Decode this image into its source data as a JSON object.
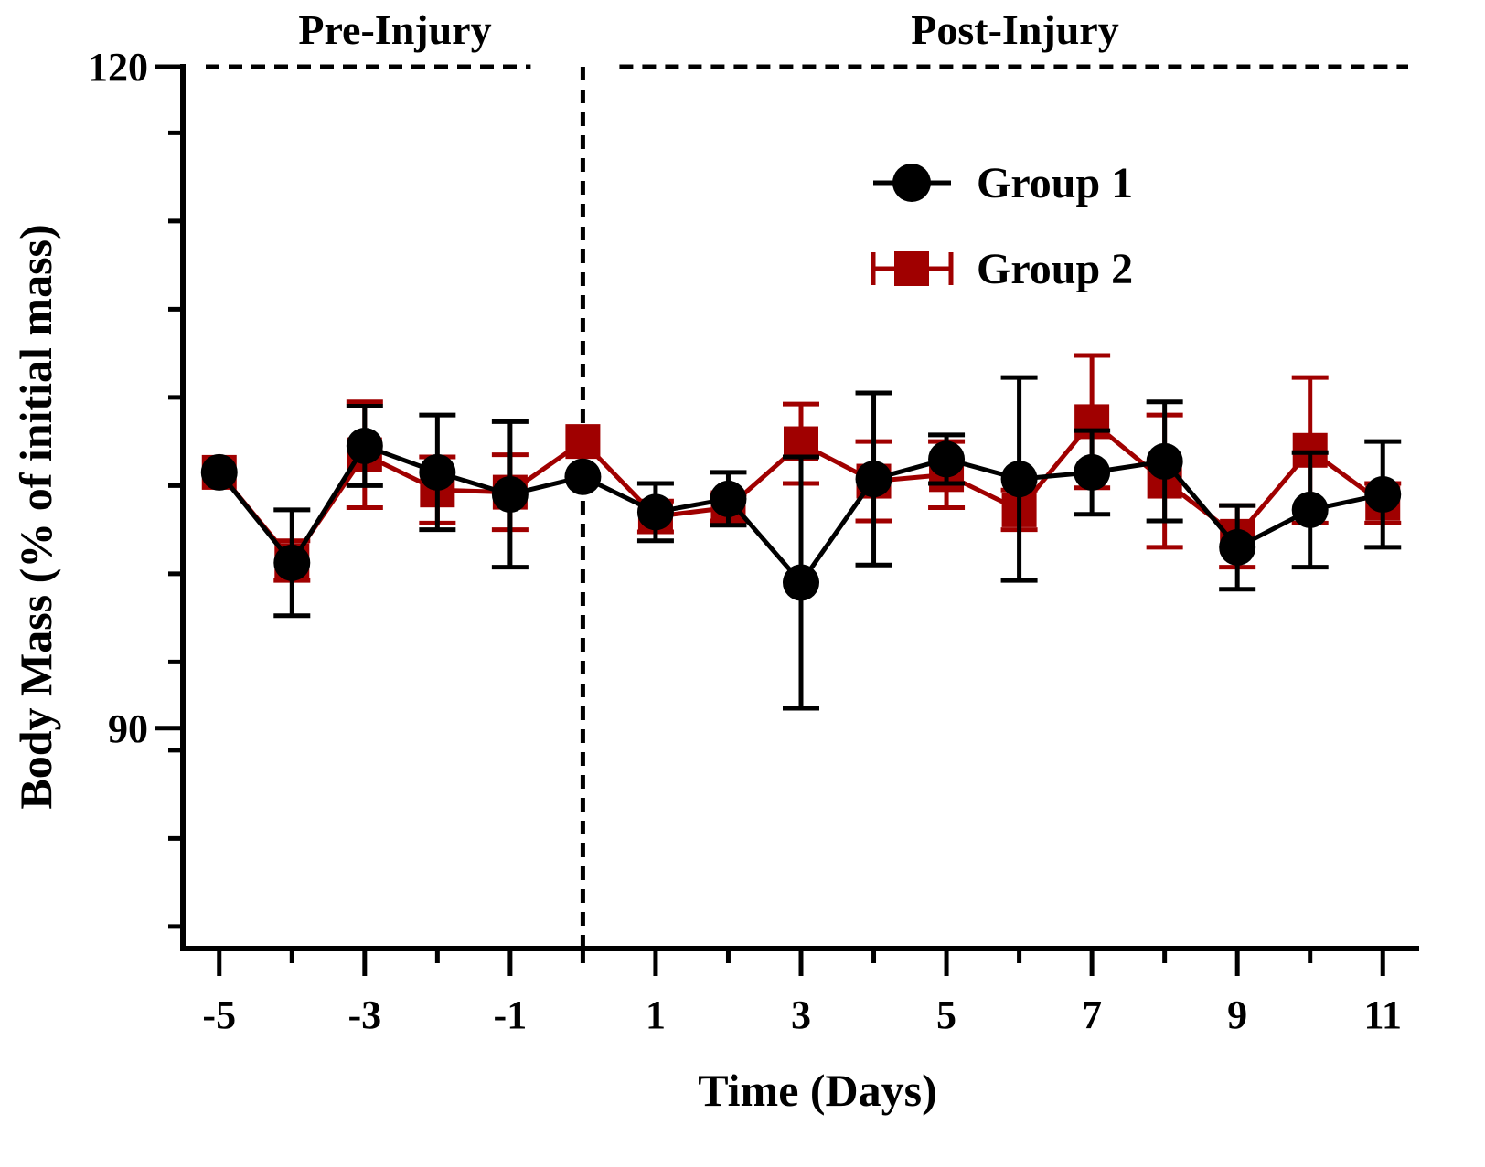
{
  "chart_data": {
    "type": "line",
    "title": "",
    "xlabel": "Time (Days)",
    "ylabel": "Body Mass (% of initial mass)",
    "xlim": [
      -5.5,
      11.5
    ],
    "ylim": [
      80,
      120
    ],
    "x_ticks": [
      -5,
      -4,
      -3,
      -2,
      -1,
      0,
      1,
      2,
      3,
      4,
      5,
      6,
      7,
      8,
      9,
      10,
      11
    ],
    "x_tick_labels": [
      "-5",
      "-3",
      "-1",
      "1",
      "3",
      "5",
      "7",
      "9",
      "11"
    ],
    "x_tick_label_values": [
      -5,
      -3,
      -1,
      1,
      3,
      5,
      7,
      9,
      11
    ],
    "y_ticks": [
      81,
      85,
      89,
      93,
      97,
      101,
      105,
      109,
      113,
      117
    ],
    "y_tick_labels": [
      "120",
      "90"
    ],
    "y_tick_label_values": [
      120,
      90
    ],
    "regions": [
      {
        "label": "Pre-Injury",
        "x_start": -5.5,
        "x_end": 0
      },
      {
        "label": "Post-Injury",
        "x_start": 0,
        "x_end": 11.5
      }
    ],
    "reference_lines": [
      {
        "orientation": "vertical",
        "x": 0,
        "style": "dashed"
      },
      {
        "orientation": "horizontal",
        "y": 120,
        "style": "dashed"
      }
    ],
    "grid": false,
    "legend_position": "top-right",
    "series": [
      {
        "name": "Group 1",
        "color": "#000000",
        "marker": "circle",
        "x": [
          -5,
          -4,
          -3,
          -2,
          -1,
          0,
          1,
          2,
          3,
          4,
          5,
          6,
          7,
          8,
          9,
          10,
          11
        ],
        "y": [
          101.6,
          97.5,
          102.8,
          101.6,
          100.6,
          101.4,
          99.8,
          100.4,
          96.6,
          101.3,
          102.2,
          101.3,
          101.6,
          102.1,
          98.2,
          99.9,
          100.6
        ],
        "err": [
          0.0,
          2.4,
          1.8,
          2.6,
          3.3,
          0.0,
          1.3,
          1.2,
          5.7,
          3.9,
          1.1,
          4.6,
          1.9,
          2.7,
          1.9,
          2.6,
          2.4
        ]
      },
      {
        "name": "Group 2",
        "color": "#a00000",
        "marker": "square",
        "x": [
          -5,
          -4,
          -3,
          -2,
          -1,
          0,
          1,
          2,
          3,
          4,
          5,
          6,
          7,
          8,
          9,
          10,
          11
        ],
        "y": [
          101.6,
          97.6,
          102.4,
          100.8,
          100.7,
          103.0,
          99.6,
          100.0,
          102.9,
          101.2,
          101.5,
          99.9,
          103.9,
          101.2,
          98.7,
          102.6,
          100.2
        ],
        "err": [
          0.0,
          0.9,
          2.4,
          1.5,
          1.7,
          0.0,
          0.7,
          0.6,
          1.8,
          1.8,
          1.5,
          0.9,
          3.0,
          3.0,
          1.4,
          3.3,
          0.9
        ]
      }
    ]
  }
}
